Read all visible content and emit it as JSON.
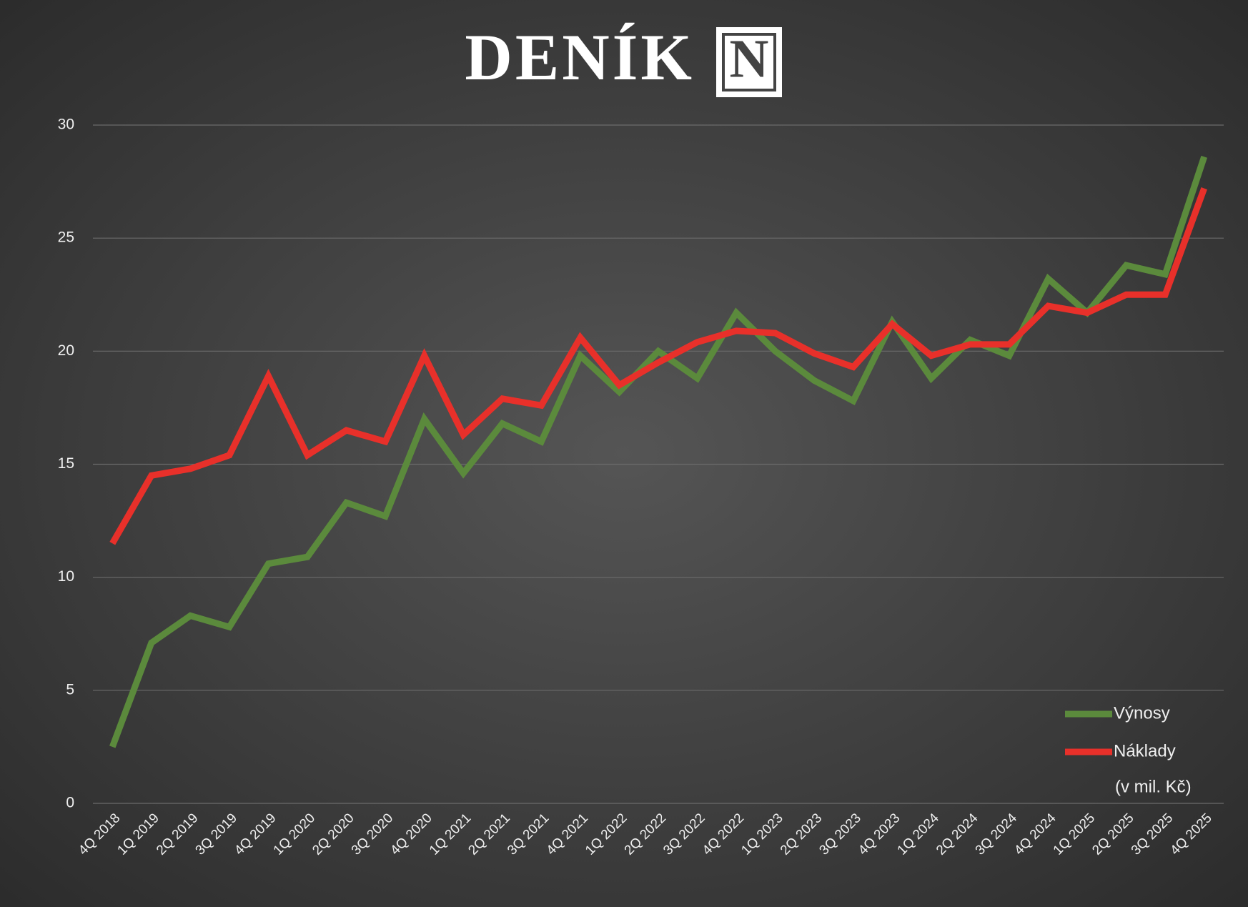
{
  "logo": {
    "text": "DENÍK",
    "mark": "N"
  },
  "chart_data": {
    "type": "line",
    "categories": [
      "4Q 2018",
      "1Q 2019",
      "2Q 2019",
      "3Q 2019",
      "4Q 2019",
      "1Q 2020",
      "2Q 2020",
      "3Q 2020",
      "4Q 2020",
      "1Q 2021",
      "2Q 2021",
      "3Q 2021",
      "4Q 2021",
      "1Q 2022",
      "2Q 2022",
      "3Q 2022",
      "4Q 2022",
      "1Q 2023",
      "2Q 2023",
      "3Q 2023",
      "4Q 2023",
      "1Q 2024",
      "2Q 2024",
      "3Q 2024",
      "4Q 2024",
      "1Q 2025",
      "2Q 2025",
      "3Q 2025",
      "4Q 2025"
    ],
    "series": [
      {
        "name": "Výnosy",
        "color": "#5b8a3c",
        "values": [
          2.5,
          7.1,
          8.3,
          7.8,
          10.6,
          10.9,
          13.3,
          12.7,
          17.0,
          14.6,
          16.8,
          16.0,
          19.8,
          18.2,
          20.0,
          18.8,
          21.7,
          20.0,
          18.7,
          17.8,
          21.3,
          18.8,
          20.5,
          19.8,
          23.2,
          21.7,
          23.8,
          23.4,
          28.6
        ]
      },
      {
        "name": "Náklady",
        "color": "#e8302a",
        "values": [
          11.5,
          14.5,
          14.8,
          15.4,
          18.9,
          15.4,
          16.5,
          16.0,
          19.8,
          16.3,
          17.9,
          17.6,
          20.6,
          18.5,
          19.5,
          20.4,
          20.9,
          20.8,
          19.9,
          19.3,
          21.2,
          19.8,
          20.3,
          20.3,
          22.0,
          21.7,
          22.5,
          22.5,
          27.2
        ]
      }
    ],
    "legend_note": "(v mil. Kč)",
    "legend": "lower right",
    "ylim": [
      0,
      30
    ],
    "yticks": [
      0,
      5,
      10,
      15,
      20,
      25,
      30
    ],
    "grid": true
  }
}
